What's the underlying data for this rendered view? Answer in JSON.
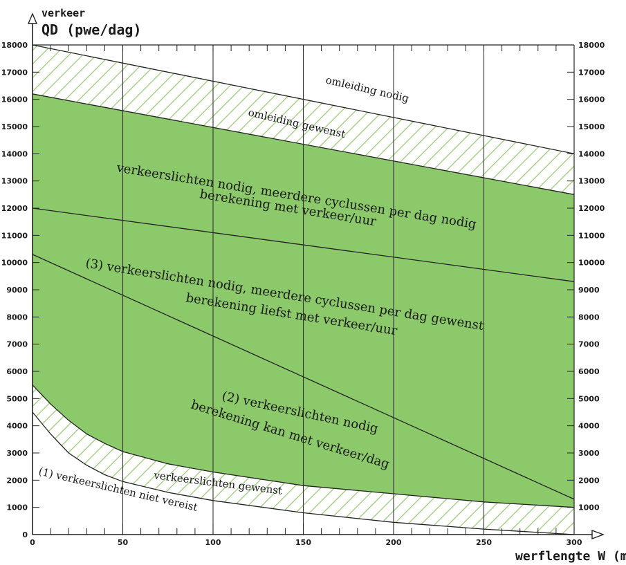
{
  "chart_data": {
    "type": "area",
    "title": "",
    "ylabel_top": "verkeer",
    "ylabel": "QD (pwe/dag)",
    "xlabel": "werflengte W (m)",
    "xlim": [
      0,
      300
    ],
    "ylim": [
      0,
      18000
    ],
    "x_ticks": [
      0,
      50,
      100,
      150,
      200,
      250,
      300
    ],
    "y_ticks": [
      0,
      1000,
      2000,
      3000,
      4000,
      5000,
      6000,
      7000,
      8000,
      9000,
      10000,
      11000,
      12000,
      13000,
      14000,
      15000,
      16000,
      17000,
      18000
    ],
    "grid": "vertical",
    "colors": {
      "green": "#8cc96a",
      "hatch": "#a8d28a",
      "line": "#222222"
    },
    "series": [
      {
        "x": [
          0,
          300
        ],
        "y": [
          18000,
          14000
        ]
      },
      {
        "x": [
          0,
          300
        ],
        "y": [
          16200,
          12500
        ]
      },
      {
        "x": [
          0,
          300
        ],
        "y": [
          12000,
          9300
        ]
      },
      {
        "x": [
          0,
          300
        ],
        "y": [
          10300,
          1300
        ]
      },
      {
        "x": [
          0,
          10,
          20,
          30,
          40,
          50,
          75,
          100,
          150,
          200,
          250,
          300
        ],
        "y": [
          5500,
          4800,
          4200,
          3700,
          3350,
          3050,
          2600,
          2300,
          1800,
          1500,
          1200,
          1000
        ]
      },
      {
        "x": [
          0,
          10,
          20,
          30,
          40,
          50,
          75,
          100,
          150,
          200,
          250,
          300
        ],
        "y": [
          4500,
          3700,
          3000,
          2550,
          2200,
          1950,
          1550,
          1250,
          800,
          450,
          200,
          0
        ]
      }
    ],
    "annotations": [
      {
        "text": "omleiding nodig",
        "x": 215,
        "y": 16800
      },
      {
        "text": "omleiding gewenst",
        "x": 170,
        "y": 15200
      },
      {
        "text": "verkeerslichten nodig, meerdere cyclussen per dag nodig",
        "x": 175,
        "y": 13000
      },
      {
        "text": "berekening met verkeer/uur",
        "x": 145,
        "y": 12000
      },
      {
        "text": "(3) verkeerslichten nodig, meerdere cyclussen per dag gewenst",
        "x": 165,
        "y": 9500
      },
      {
        "text": "berekening liefst met verkeer/uur",
        "x": 160,
        "y": 8400
      },
      {
        "text": "(2) verkeerslichten nodig",
        "x": 130,
        "y": 4500
      },
      {
        "text": "berekening kan met verkeer/dag",
        "x": 148,
        "y": 3800
      },
      {
        "text": "verkeerslichten gewenst",
        "x": 120,
        "y": 1900
      },
      {
        "text": "(1) verkeerslichten niet vereist",
        "x": 50,
        "y": 1500
      }
    ]
  }
}
